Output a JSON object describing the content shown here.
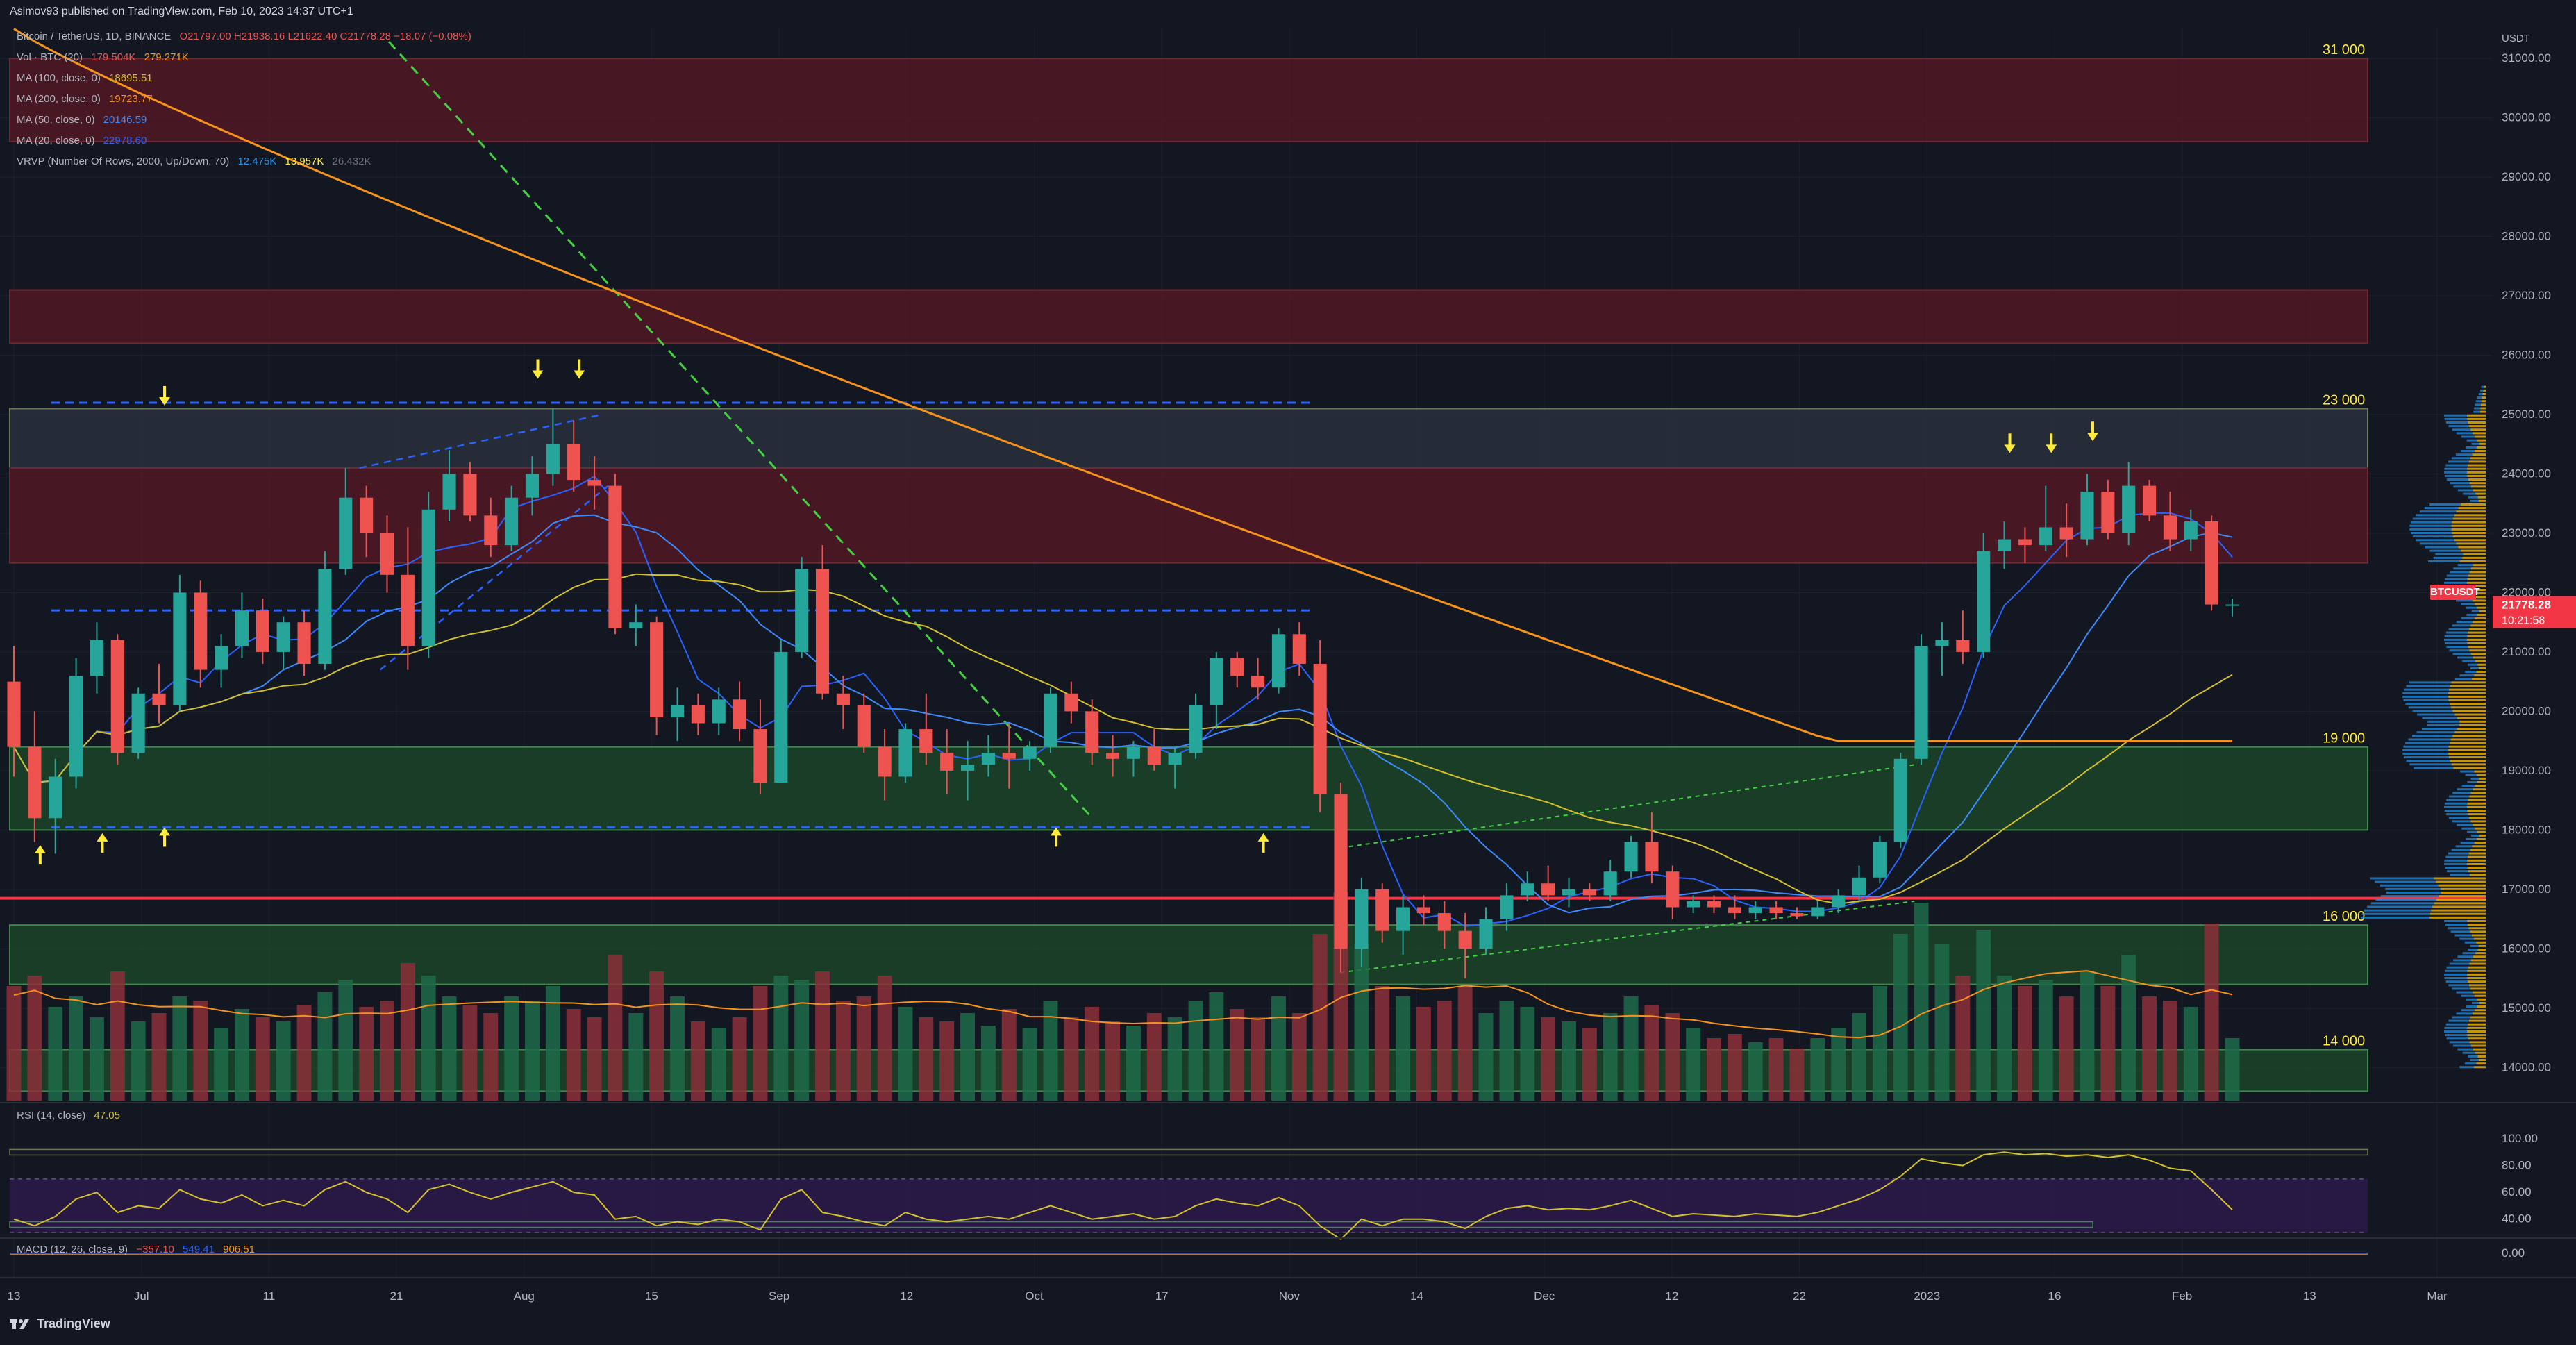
{
  "header": {
    "published_line": "Asimov93 published on TradingView.com, Feb 10, 2023 14:37 UTC+1"
  },
  "legend": {
    "symbol": {
      "label": "Bitcoin / TetherUS, 1D, BINANCE",
      "ohlc": "O21797.00 H21938.16 L21622.40 C21778.28 −18.07 (−0.08%)"
    },
    "volume": {
      "label": "Vol · BTC (20)",
      "v1": "179.504K",
      "v2": "279.271K"
    },
    "ma100": {
      "label": "MA (100, close, 0)",
      "value": "18695.51"
    },
    "ma200": {
      "label": "MA (200, close, 0)",
      "value": "19723.77"
    },
    "ma50": {
      "label": "MA (50, close, 0)",
      "value": "20146.59"
    },
    "ma20": {
      "label": "MA (20, close, 0)",
      "value": "22978.60"
    },
    "vrvp": {
      "label": "VRVP (Number Of Rows, 2000, Up/Down, 70)",
      "v1": "12.475K",
      "v2": "13.957K",
      "v3": "26.432K"
    },
    "rsi": {
      "label": "RSI (14, close)",
      "value": "47.05"
    },
    "macd": {
      "label": "MACD (12, 26, close, 9)",
      "v1": "−357.10",
      "v2": "549.41",
      "v3": "906.51"
    }
  },
  "price_axis": {
    "currency": "USDT",
    "ticks": [
      "31000.00",
      "30000.00",
      "29000.00",
      "28000.00",
      "27000.00",
      "26000.00",
      "25000.00",
      "24000.00",
      "23000.00",
      "22000.00",
      "21000.00",
      "20000.00",
      "19000.00",
      "18000.00",
      "17000.00",
      "16000.00",
      "15000.00",
      "14000.00"
    ],
    "rsi_ticks": [
      "100.00",
      "80.00",
      "60.00",
      "40.00"
    ],
    "macd_ticks": [
      "0.00"
    ],
    "current_price": "21778.28",
    "countdown": "10:21:58",
    "symbol_tag": "BTCUSDT"
  },
  "time_axis": {
    "labels": [
      "13",
      "Jul",
      "11",
      "21",
      "Aug",
      "15",
      "Sep",
      "12",
      "Oct",
      "17",
      "Nov",
      "14",
      "Dec",
      "12",
      "22",
      "2023",
      "16",
      "Feb",
      "13",
      "Mar"
    ]
  },
  "zone_labels": [
    "31 000",
    "23 000",
    "19 000",
    "16 000",
    "14 000"
  ],
  "footer": {
    "brand": "TradingView"
  },
  "colors": {
    "bg": "#131722",
    "up": "#26a69a",
    "down": "#ef5350",
    "ma20": "#2962ff",
    "ma50": "#3d8bfd",
    "ma100": "#d4c02a",
    "ma200": "#f7931a",
    "rsi_line": "#d4c02a",
    "zone_red": "#5a1a24",
    "zone_green": "#1e4b2a",
    "zone_gray": "#2e3340",
    "arrow": "#ffeb3b",
    "support_line": "#f23645",
    "volume_ma": "#f7931a",
    "trend_green": "#4caf50",
    "dashed_blue": "#2962ff"
  },
  "chart_data": {
    "type": "candlestick",
    "title": "Bitcoin / TetherUS, 1D, BINANCE",
    "ylim": [
      13500,
      31400
    ],
    "candles": [
      [
        20500,
        21100,
        18900,
        19400
      ],
      [
        19400,
        20000,
        17800,
        18200
      ],
      [
        18200,
        19200,
        17600,
        18900
      ],
      [
        18900,
        20900,
        18700,
        20600
      ],
      [
        20600,
        21500,
        20300,
        21200
      ],
      [
        21200,
        21300,
        19100,
        19300
      ],
      [
        19300,
        20400,
        19200,
        20300
      ],
      [
        20300,
        20800,
        19800,
        20100
      ],
      [
        20100,
        22300,
        20000,
        22000
      ],
      [
        22000,
        22200,
        20400,
        20700
      ],
      [
        20700,
        21300,
        20400,
        21100
      ],
      [
        21100,
        22000,
        20900,
        21700
      ],
      [
        21700,
        21900,
        20800,
        21000
      ],
      [
        21000,
        21600,
        20700,
        21500
      ],
      [
        21500,
        21700,
        20600,
        20800
      ],
      [
        20800,
        22700,
        20700,
        22400
      ],
      [
        22400,
        24100,
        22300,
        23600
      ],
      [
        23600,
        23800,
        22600,
        23000
      ],
      [
        23000,
        23300,
        22000,
        22300
      ],
      [
        22300,
        23100,
        20700,
        21100
      ],
      [
        21100,
        23700,
        20900,
        23400
      ],
      [
        23400,
        24400,
        23200,
        24000
      ],
      [
        24000,
        24200,
        23200,
        23300
      ],
      [
        23300,
        23600,
        22600,
        22800
      ],
      [
        22800,
        23800,
        22700,
        23600
      ],
      [
        23600,
        24300,
        23300,
        24000
      ],
      [
        24000,
        25100,
        23800,
        24500
      ],
      [
        24500,
        24900,
        23700,
        23900
      ],
      [
        23900,
        24300,
        23400,
        23800
      ],
      [
        23800,
        24000,
        21300,
        21400
      ],
      [
        21400,
        21800,
        21100,
        21500
      ],
      [
        21500,
        21600,
        19600,
        19900
      ],
      [
        19900,
        20400,
        19500,
        20100
      ],
      [
        20100,
        20300,
        19600,
        19800
      ],
      [
        19800,
        20400,
        19600,
        20200
      ],
      [
        20200,
        20500,
        19500,
        19700
      ],
      [
        19700,
        20200,
        18600,
        18800
      ],
      [
        18800,
        21200,
        18800,
        21000
      ],
      [
        21000,
        22600,
        20900,
        22400
      ],
      [
        22400,
        22800,
        20200,
        20300
      ],
      [
        20300,
        20600,
        19700,
        20100
      ],
      [
        20100,
        20300,
        19300,
        19400
      ],
      [
        19400,
        19700,
        18500,
        18900
      ],
      [
        18900,
        19800,
        18800,
        19700
      ],
      [
        19700,
        20300,
        19100,
        19300
      ],
      [
        19300,
        19700,
        18600,
        19000
      ],
      [
        19000,
        19500,
        18500,
        19100
      ],
      [
        19100,
        19600,
        18900,
        19300
      ],
      [
        19300,
        19800,
        18700,
        19200
      ],
      [
        19200,
        19500,
        19000,
        19400
      ],
      [
        19400,
        20400,
        19300,
        20300
      ],
      [
        20300,
        20500,
        19800,
        20000
      ],
      [
        20000,
        20200,
        19100,
        19300
      ],
      [
        19300,
        19600,
        18900,
        19200
      ],
      [
        19200,
        19500,
        18900,
        19400
      ],
      [
        19400,
        19700,
        19000,
        19100
      ],
      [
        19100,
        19400,
        18700,
        19300
      ],
      [
        19300,
        20300,
        19200,
        20100
      ],
      [
        20100,
        21000,
        19700,
        20900
      ],
      [
        20900,
        21000,
        20400,
        20600
      ],
      [
        20600,
        20900,
        20200,
        20400
      ],
      [
        20400,
        21400,
        20300,
        21300
      ],
      [
        21300,
        21500,
        20600,
        20800
      ],
      [
        20800,
        21200,
        18300,
        18600
      ],
      [
        18600,
        18800,
        15600,
        16000
      ],
      [
        16000,
        17200,
        15700,
        17000
      ],
      [
        17000,
        17100,
        16100,
        16300
      ],
      [
        16300,
        16900,
        15900,
        16700
      ],
      [
        16700,
        16900,
        16400,
        16600
      ],
      [
        16600,
        16800,
        16000,
        16300
      ],
      [
        16300,
        16600,
        15500,
        16000
      ],
      [
        16000,
        16700,
        15900,
        16500
      ],
      [
        16500,
        17100,
        16300,
        16900
      ],
      [
        16900,
        17300,
        16800,
        17100
      ],
      [
        17100,
        17400,
        16800,
        16900
      ],
      [
        16900,
        17200,
        16700,
        17000
      ],
      [
        17000,
        17100,
        16800,
        16900
      ],
      [
        16900,
        17500,
        16800,
        17300
      ],
      [
        17300,
        17900,
        17200,
        17800
      ],
      [
        17800,
        18300,
        17100,
        17300
      ],
      [
        17300,
        17400,
        16500,
        16700
      ],
      [
        16700,
        16900,
        16600,
        16800
      ],
      [
        16800,
        16900,
        16600,
        16700
      ],
      [
        16700,
        16900,
        16500,
        16600
      ],
      [
        16600,
        16800,
        16500,
        16700
      ],
      [
        16700,
        16800,
        16500,
        16600
      ],
      [
        16600,
        16700,
        16500,
        16550
      ],
      [
        16550,
        16800,
        16500,
        16700
      ],
      [
        16700,
        17000,
        16600,
        16900
      ],
      [
        16900,
        17400,
        16800,
        17200
      ],
      [
        17200,
        17900,
        17100,
        17800
      ],
      [
        17800,
        19300,
        17700,
        19200
      ],
      [
        19200,
        21300,
        19100,
        21100
      ],
      [
        21100,
        21500,
        20600,
        21200
      ],
      [
        21200,
        21700,
        20800,
        21000
      ],
      [
        21000,
        23000,
        20900,
        22700
      ],
      [
        22700,
        23200,
        22400,
        22900
      ],
      [
        22900,
        23100,
        22500,
        22800
      ],
      [
        22800,
        23800,
        22700,
        23100
      ],
      [
        23100,
        23500,
        22600,
        22900
      ],
      [
        22900,
        24000,
        22800,
        23700
      ],
      [
        23700,
        23900,
        22900,
        23000
      ],
      [
        23000,
        24200,
        22800,
        23800
      ],
      [
        23800,
        23900,
        23200,
        23300
      ],
      [
        23300,
        23700,
        22700,
        22900
      ],
      [
        22900,
        23400,
        22700,
        23200
      ],
      [
        23200,
        23300,
        21700,
        21800
      ],
      [
        21800,
        21900,
        21600,
        21800
      ]
    ],
    "volume": [
      0.55,
      0.6,
      0.45,
      0.5,
      0.4,
      0.62,
      0.38,
      0.42,
      0.5,
      0.48,
      0.35,
      0.44,
      0.4,
      0.38,
      0.46,
      0.52,
      0.58,
      0.45,
      0.48,
      0.66,
      0.6,
      0.5,
      0.46,
      0.42,
      0.5,
      0.48,
      0.55,
      0.44,
      0.4,
      0.7,
      0.42,
      0.62,
      0.5,
      0.38,
      0.35,
      0.4,
      0.55,
      0.6,
      0.58,
      0.62,
      0.48,
      0.5,
      0.6,
      0.45,
      0.4,
      0.38,
      0.42,
      0.36,
      0.44,
      0.35,
      0.48,
      0.4,
      0.45,
      0.38,
      0.36,
      0.42,
      0.4,
      0.48,
      0.52,
      0.44,
      0.4,
      0.5,
      0.42,
      0.8,
      1.0,
      0.75,
      0.55,
      0.5,
      0.45,
      0.48,
      0.55,
      0.42,
      0.48,
      0.45,
      0.4,
      0.38,
      0.35,
      0.42,
      0.5,
      0.46,
      0.42,
      0.35,
      0.3,
      0.32,
      0.28,
      0.3,
      0.25,
      0.3,
      0.35,
      0.42,
      0.55,
      0.8,
      0.95,
      0.75,
      0.6,
      0.82,
      0.6,
      0.55,
      0.58,
      0.5,
      0.62,
      0.55,
      0.7,
      0.5,
      0.48,
      0.45,
      0.85,
      0.3
    ],
    "zones": [
      {
        "kind": "red",
        "from": 29600,
        "to": 31000,
        "label": "31 000"
      },
      {
        "kind": "red",
        "from": 26200,
        "to": 27100
      },
      {
        "kind": "gray",
        "from": 24100,
        "to": 25100,
        "label": "23 000"
      },
      {
        "kind": "red",
        "from": 22500,
        "to": 24100
      },
      {
        "kind": "green",
        "from": 18000,
        "to": 19400,
        "label": "19 000"
      },
      {
        "kind": "green",
        "from": 15400,
        "to": 16400,
        "label": "16 000"
      },
      {
        "kind": "green",
        "from": 13600,
        "to": 14300,
        "label": "14 000"
      }
    ],
    "support_price": 16850,
    "dashed_levels": [
      {
        "price": 25200,
        "from": 0.0,
        "to": 0.55
      },
      {
        "price": 21700,
        "from": 0.0,
        "to": 0.55
      },
      {
        "price": 18050,
        "from": 0.0,
        "to": 0.55
      }
    ],
    "rsi": [
      40,
      35,
      42,
      55,
      60,
      45,
      50,
      48,
      62,
      55,
      52,
      58,
      50,
      54,
      50,
      62,
      68,
      60,
      55,
      45,
      62,
      66,
      60,
      55,
      60,
      64,
      68,
      60,
      58,
      40,
      42,
      35,
      38,
      36,
      40,
      38,
      32,
      55,
      62,
      45,
      42,
      38,
      35,
      45,
      40,
      38,
      40,
      42,
      40,
      45,
      50,
      45,
      40,
      42,
      44,
      40,
      42,
      50,
      55,
      52,
      50,
      56,
      50,
      35,
      25,
      40,
      35,
      40,
      40,
      38,
      33,
      42,
      48,
      50,
      47,
      48,
      47,
      50,
      54,
      48,
      42,
      44,
      43,
      42,
      44,
      43,
      42,
      45,
      50,
      55,
      62,
      72,
      85,
      82,
      80,
      88,
      90,
      88,
      89,
      87,
      88,
      86,
      88,
      84,
      78,
      76,
      62,
      47
    ],
    "macd": {
      "line": "flat",
      "hist": "small"
    }
  }
}
